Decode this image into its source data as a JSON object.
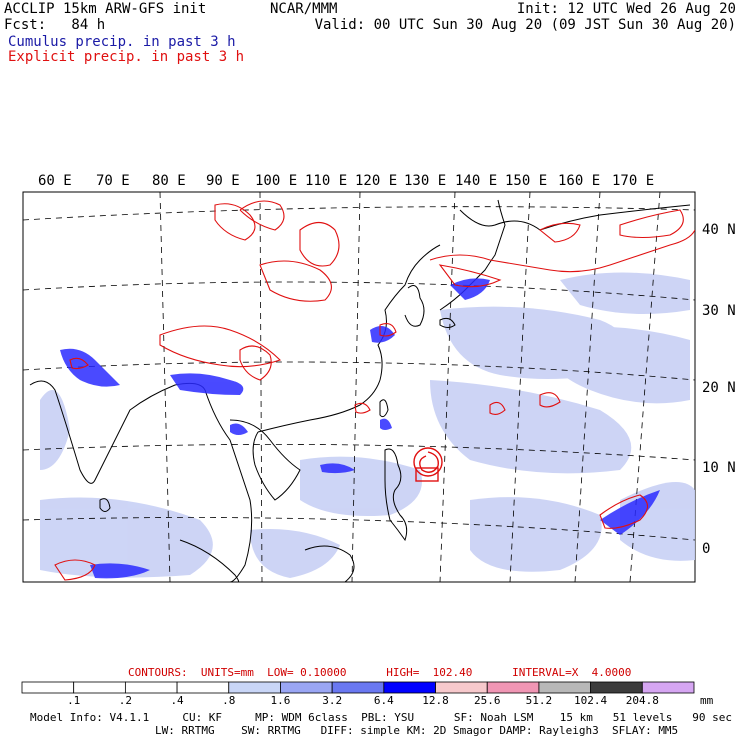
{
  "header": {
    "model_line": "ACCLIP 15km ARW-GFS init",
    "forecast": "Fcst:   84 h",
    "center": "NCAR/MMM",
    "init": "Init: 12 UTC Wed 26 Aug 20",
    "valid": "Valid: 00 UTC Sun 30 Aug 20 (09 JST Sun 30 Aug 20)"
  },
  "legend": {
    "cumulus": "Cumulus precip. in past 3 h",
    "explicit": "Explicit precip. in past 3 h"
  },
  "map": {
    "lon_labels": [
      "60 E",
      "70 E",
      "80 E",
      "90 E",
      "100 E",
      "110 E",
      "120 E",
      "130 E",
      "140 E",
      "150 E",
      "160 E",
      "170 E"
    ],
    "lat_labels": [
      "40 N",
      "30 N",
      "20 N",
      "10 N",
      "0"
    ],
    "colors": {
      "explicit": "#e01010",
      "cumulus": "#2a2aff",
      "light_precip": "#c8d0f5",
      "typhoon": "#e01010"
    }
  },
  "contours_line": "CONTOURS:  UNITS=mm  LOW= 0.10000      HIGH=  102.40      INTERVAL=X  4.0000",
  "colorbar": {
    "labels": [
      ".1",
      ".2",
      ".4",
      ".8",
      "1.6",
      "3.2",
      "6.4",
      "12.8",
      "25.6",
      "51.2",
      "102.4",
      "204.8"
    ],
    "unit": "mm",
    "colors": [
      "#ffffff",
      "#ffffff",
      "#ffffff",
      "#ffffff",
      "#c9d6f7",
      "#9aa6f4",
      "#6a78f1",
      "#0000ff",
      "#f7c9cc",
      "#f096b4",
      "#b8b8b8",
      "#3c3c3c",
      "#d6a6f2"
    ]
  },
  "model_info": {
    "line1": "Model Info: V4.1.1     CU: KF     MP: WDM 6class  PBL: YSU      SF: Noah LSM    15 km   51 levels   90 sec",
    "line2": "LW: RRTMG    SW: RRTMG   DIFF: simple KM: 2D Smagor DAMP: Rayleigh3  SFLAY: MM5"
  }
}
